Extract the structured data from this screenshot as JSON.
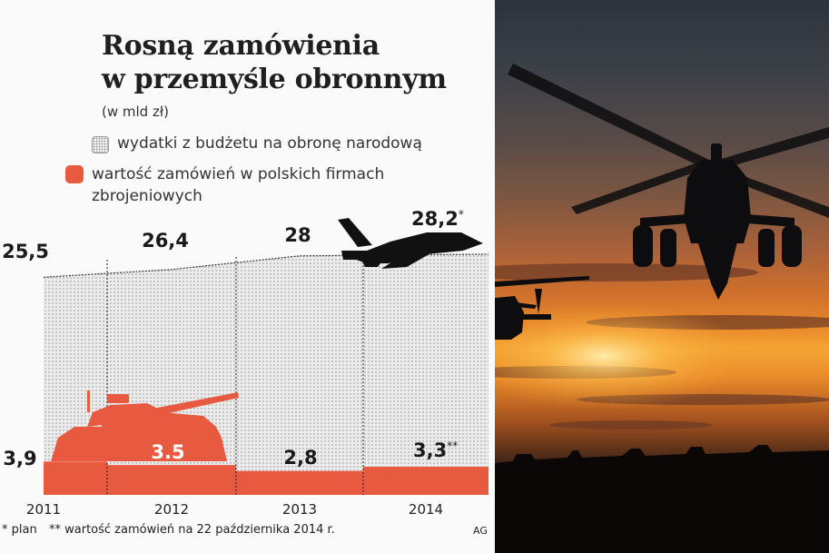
{
  "title": {
    "line1": "Rosną zamówienia",
    "line2": "w przemyśle obronnym",
    "unit": "(w mld zł)"
  },
  "legend": {
    "budget": "wydatki z budżetu na obronę narodową",
    "orders_line1": "wartość zamówień w polskich firmach",
    "orders_line2": "zbrojeniowych"
  },
  "notes": {
    "plan": "* plan",
    "orders_date": "** wartość zamówień na 22 października 2014 r.",
    "credit": "AG"
  },
  "colors": {
    "budget_fill": "#e6e6e6",
    "orders_fill": "#e85a3f",
    "silhouette": "#111111"
  },
  "icons": [
    "tank-icon",
    "fighter-jet-icon",
    "helicopter-icon"
  ],
  "chart_data": {
    "type": "area",
    "x": [
      "2011",
      "2012",
      "2013",
      "2014"
    ],
    "series": [
      {
        "values": [
          25.5,
          26.4,
          28,
          28.2
        ],
        "labels": [
          "25,5",
          "26,4",
          "28",
          "28,2"
        ],
        "markers": [
          "",
          "",
          "",
          "*"
        ]
      },
      {
        "values": [
          3.9,
          3.5,
          2.8,
          3.3
        ],
        "labels": [
          "3,9",
          "3.5",
          "2,8",
          "3,3"
        ],
        "markers": [
          "",
          "",
          "",
          "**"
        ]
      }
    ],
    "ylim": [
      0,
      30
    ]
  }
}
